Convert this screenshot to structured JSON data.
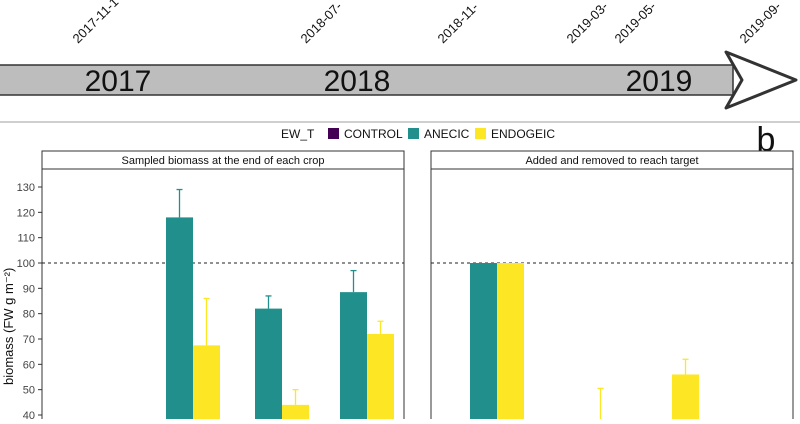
{
  "timeline": {
    "dates": [
      "2017-11-1",
      "2018-07-",
      "2018-11-",
      "2019-03-",
      "2019-05-",
      "2019-09-"
    ],
    "years": [
      "2017",
      "2018",
      "2019"
    ]
  },
  "panel_letter": "b",
  "chart_data": {
    "type": "bar",
    "legend": {
      "title": "EW_T",
      "position": "top",
      "entries": [
        {
          "name": "CONTROL",
          "color": "#440154"
        },
        {
          "name": "ANECIC",
          "color": "#21908c"
        },
        {
          "name": "ENDOGEIC",
          "color": "#fde725"
        }
      ]
    },
    "ylabel": "biomass (FW g m⁻²)",
    "ylim": [
      40,
      135
    ],
    "yticks": [
      40,
      50,
      60,
      70,
      80,
      90,
      100,
      110,
      120,
      130
    ],
    "reference_line": 100,
    "panels": [
      {
        "title": "Sampled biomass at the end of each crop",
        "groups": [
          {
            "values": {
              "ANECIC": 118,
              "ENDOGEIC": 67.5
            },
            "errors": {
              "ANECIC": 11,
              "ENDOGEIC": 18.5
            }
          },
          {
            "values": {
              "ANECIC": 82,
              "ENDOGEIC": 44
            },
            "errors": {
              "ANECIC": 5,
              "ENDOGEIC": 6
            }
          },
          {
            "values": {
              "ANECIC": 88.5,
              "ENDOGEIC": 72
            },
            "errors": {
              "ANECIC": 8.5,
              "ENDOGEIC": 5
            }
          }
        ]
      },
      {
        "title": "Added and removed to reach target",
        "groups": [
          {
            "values": {
              "ANECIC": 100,
              "ENDOGEIC": 100
            },
            "errors": {}
          },
          {
            "values": {
              "ENDOGEIC": 38
            },
            "errors": {
              "ENDOGEIC": 12.5
            }
          },
          {
            "values": {
              "ENDOGEIC": 56
            },
            "errors": {
              "ENDOGEIC": 6
            }
          }
        ]
      }
    ]
  }
}
